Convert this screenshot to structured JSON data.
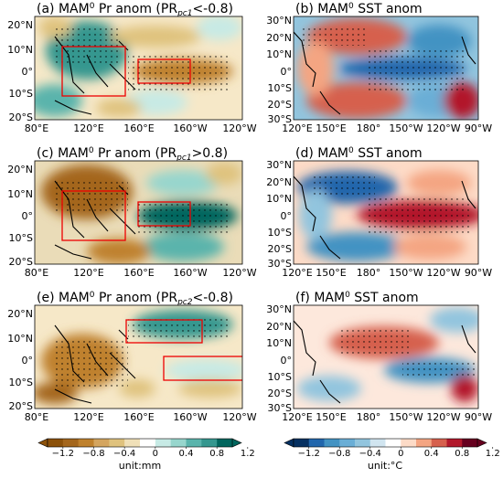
{
  "panels": [
    {
      "id": "a",
      "label": "(a)",
      "var": "Pr",
      "extra": "PR",
      "subscript": "pc1",
      "cond": "<-0.8",
      "anom": "anom",
      "season": "MAM",
      "sup": "0",
      "lon_ticks": [
        "80°E",
        "120°E",
        "160°E",
        "160°W",
        "120°W"
      ],
      "lat_ticks": [
        "20°N",
        "10°N",
        "0°",
        "10°S",
        "20°S"
      ]
    },
    {
      "id": "b",
      "label": "(b)",
      "var": "SST",
      "anom": "anom",
      "season": "MAM",
      "sup": "0",
      "lon_ticks": [
        "120°E",
        "150°E",
        "180°",
        "150°W",
        "120°W",
        "90°W"
      ],
      "lat_ticks": [
        "30°N",
        "20°N",
        "10°N",
        "0°",
        "10°S",
        "20°S",
        "30°S"
      ]
    },
    {
      "id": "c",
      "label": "(c)",
      "var": "Pr",
      "extra": "PR",
      "subscript": "pc1",
      "cond": ">0.8",
      "anom": "anom",
      "season": "MAM",
      "sup": "0",
      "lon_ticks": [
        "80°E",
        "120°E",
        "160°E",
        "160°W",
        "120°W"
      ],
      "lat_ticks": [
        "20°N",
        "10°N",
        "0°",
        "10°S",
        "20°S"
      ]
    },
    {
      "id": "d",
      "label": "(d)",
      "var": "SST",
      "anom": "anom",
      "season": "MAM",
      "sup": "0",
      "lon_ticks": [
        "120°E",
        "150°E",
        "180°",
        "150°W",
        "120°W",
        "90°W"
      ],
      "lat_ticks": [
        "30°N",
        "20°N",
        "10°N",
        "0°",
        "10°S",
        "20°S",
        "30°S"
      ]
    },
    {
      "id": "e",
      "label": "(e)",
      "var": "Pr",
      "extra": "PR",
      "subscript": "pc2",
      "cond": "<-0.8",
      "anom": "anom",
      "season": "MAM",
      "sup": "0",
      "lon_ticks": [
        "80°E",
        "120°E",
        "160°E",
        "160°W",
        "120°W"
      ],
      "lat_ticks": [
        "20°N",
        "10°N",
        "0°",
        "10°S",
        "20°S"
      ]
    },
    {
      "id": "f",
      "label": "(f)",
      "var": "SST",
      "anom": "anom",
      "season": "MAM",
      "sup": "0",
      "lon_ticks": [
        "120°E",
        "150°E",
        "180°",
        "150°W",
        "120°W",
        "90°W"
      ],
      "lat_ticks": [
        "30°N",
        "20°N",
        "10°N",
        "0°",
        "10°S",
        "20°S",
        "30°S"
      ]
    }
  ],
  "colorbars": [
    {
      "ticks": [
        "−1.2",
        "−0.8",
        "−0.4",
        "0",
        "0.4",
        "0.8",
        "1.2"
      ],
      "unit": "unit:mm",
      "colors": [
        "#8c510a",
        "#a4661c",
        "#bf812d",
        "#d4a55f",
        "#dfc27d",
        "#f0e0b8",
        "#ffffff",
        "#c7eae5",
        "#97d6cd",
        "#5ab4ac",
        "#35978f",
        "#01665e"
      ]
    },
    {
      "ticks": [
        "−1.2",
        "−0.8",
        "−0.4",
        "0",
        "0.4",
        "0.8",
        "1.2"
      ],
      "unit": "unit:°C",
      "colors": [
        "#053061",
        "#2166ac",
        "#4393c3",
        "#6aaed6",
        "#92c5de",
        "#d1e5f0",
        "#ffffff",
        "#fddbc7",
        "#f4a582",
        "#d6604d",
        "#b2182b",
        "#67001f"
      ]
    }
  ]
}
